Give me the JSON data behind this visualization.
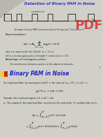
{
  "bg_top": "#d0cfc8",
  "bg_bottom": "#ffffff",
  "triangle_color": "#b8b8b0",
  "title_color": "#3333cc",
  "title_text": "Detection of Binary PAM in Noise",
  "modulation_text": "modulation",
  "waveform_color": "#000000",
  "caption_text": "A sample of binary PAM transmitted without ISI (spacing T, bit duration T)",
  "representation_text": "Representation:",
  "formula1": "$s(t) = A_s \\sum_{k=-\\infty}^{\\infty} b_k p(t - kT)$",
  "desc1": "where $b_k$ represents the kth bit: $b_k$ = 0 or 1",
  "desc2": "$h(t)$ is a rectangular pulse of length $T$ centered at $t = T/2$.",
  "advantage_text": "Advantage of rectangular pulses:",
  "advantage_desc": "No interference between pulses in the adjacent intervals.",
  "page_num": "1",
  "pdf_text": "PDF",
  "pdf_color": "#cc2222",
  "section2_title": "Binary PAM in Noise",
  "section2_color": "#2222cc",
  "bar1_color": "#ffcc00",
  "bar2_color": "#cc2200",
  "body1": "The matched filter for each pulse $h_k(kT)$ in the interval $(k-1)T_s < t < kT_s$ is:",
  "formula2": "$g_k(T) = -h(t - kT)$",
  "body2": "Consider the received signal, $r(t) = s(t) + n(t)$:",
  "body3": "$\\Rightarrow$ The output of the matched filter receiver at the end of the $k^{th}$ symbol interval is:",
  "formula3": "$b_k = \\int_{(k-1)T}^{kT} r(t) \\cdot h(t)\\, dt$",
  "formula4": "$= \\int_{(k-1)T}^{kT} s(t-kT)h(t)dt + \\int_{(k-1)T}^{kT} n(t)dt$"
}
